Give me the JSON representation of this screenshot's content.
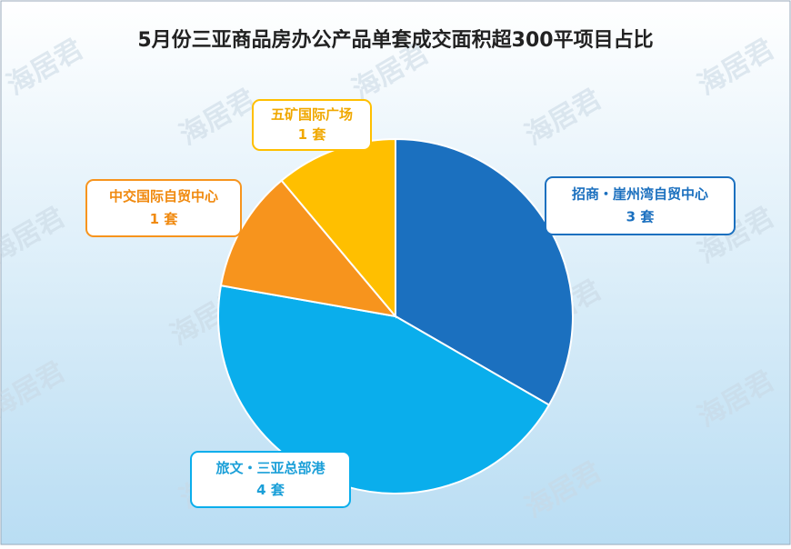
{
  "chart_data": {
    "type": "pie",
    "title": "5月份三亚商品房办公产品单套成交面积超300平项目占比",
    "categories": [
      "招商・崖州湾自贸中心",
      "旅文・三亚总部港",
      "中交国际自贸中心",
      "五矿国际广场"
    ],
    "values": [
      3,
      4,
      1,
      1
    ],
    "value_labels": [
      "3 套",
      "4 套",
      "1 套",
      "1 套"
    ],
    "colors": [
      "#1b70bf",
      "#0aaeec",
      "#f7941d",
      "#ffbf00"
    ],
    "watermark": "海居君"
  }
}
